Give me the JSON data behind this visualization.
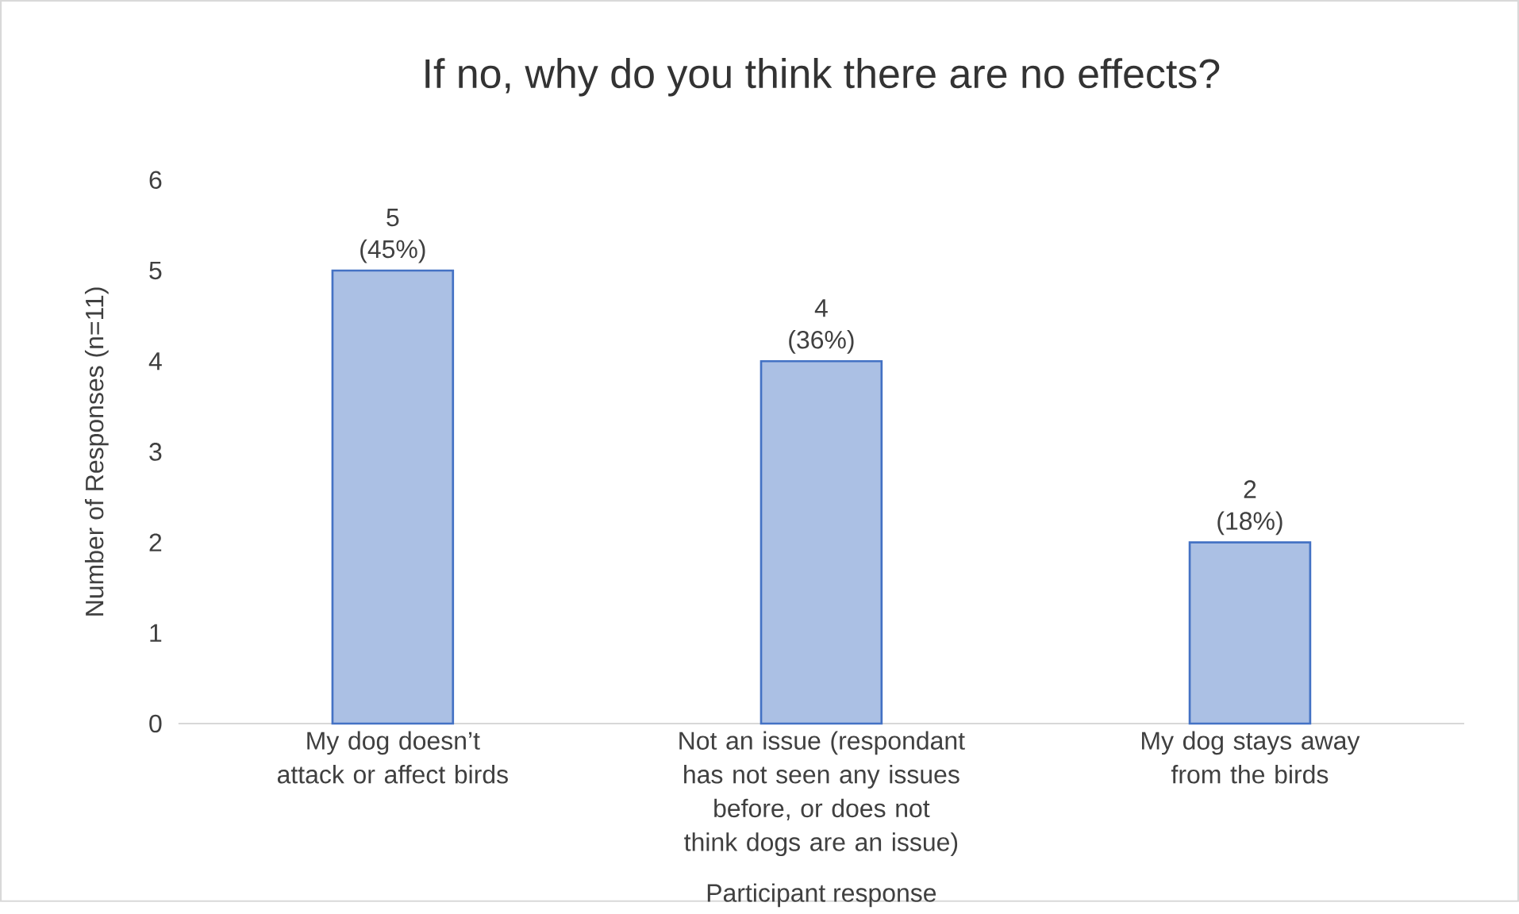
{
  "chart_data": {
    "type": "bar",
    "title": "If no, why do you think there are no effects?",
    "xlabel": "Participant response",
    "ylabel": "Number of Responses (n=11)",
    "categories": [
      "My dog doesn’t attack or affect birds",
      "Not an issue (respondant has not seen any issues before, or does not think dogs are an issue)",
      "My dog stays away from the birds"
    ],
    "values": [
      5,
      4,
      2
    ],
    "color": "#4472c4",
    "value_labels": [
      "5 (45%)",
      "4 (36%)",
      "2 (18%)"
    ],
    "ylim": [
      0,
      6
    ],
    "yticks": [
      0,
      1,
      2,
      3,
      4,
      5,
      6
    ]
  }
}
